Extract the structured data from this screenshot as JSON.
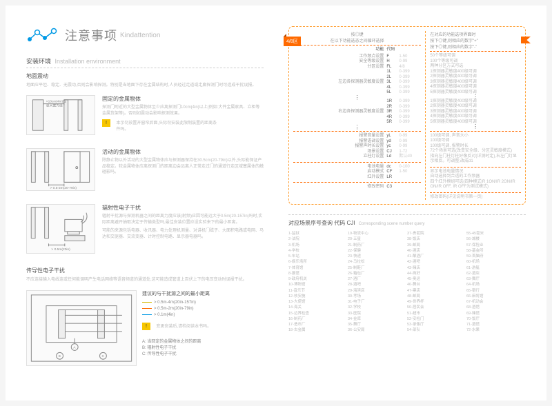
{
  "header": {
    "title_cn": "注意事项",
    "title_en": "Kindattention",
    "logo_color": "#0099e5"
  },
  "install": {
    "heading_cn": "安装环境",
    "heading_en": "Installation environment",
    "sub1": "地面震动",
    "para1": "地面应平坦、稳定、无震动,否则会影响探测。特别是当地面下存在金属结构时,人员经过走道或走廊探测门时可造成干扰误报。",
    "rows": [
      {
        "title": "固定的金属物体",
        "body": "探测门附近的大型金属物体至少应离探测门10cm(4in)以上(例如:大件金属家具、立柜等金属货架等)。否则如震动会影响探测效果。",
        "badge": "!",
        "badge_note": "本示勿放置开窗帘后面,头际勿安装此限制装置的距离条件吗。"
      },
      {
        "title": "活动的金属物体",
        "body": "除静止物以外活动的大型金属物体应与探测器保持在30.5cm(20-79in)以外,头际能保证产品稳定。较金属物体应离探测门的距离边会远离人正常走过门的通道行走区域塞属体的触碰影吗。"
      },
      {
        "title": "辐射性电子干扰",
        "body": "辐射干扰源与探测机器之间的距离力度应该(射频)应因可能远大于0.5m(20-157in)吗时,实际距离避开抽取决定于传输类型吗,最佳安装位置应设实验来下的最小距离。",
        "body2": "可能的来源包括电器、收讯器、电力处理机测量、对讲机门磁子、大面积电路或电网、马达和交驱器、交流变器、计时控制电路、显示器电器吗。"
      }
    ],
    "conductive": {
      "title": "传导性电子干扰",
      "body": "不应连接输入电线连或任何能调明产生电话网络等语音频道的通道处,这可能造成管道上百伏上下的电压变动时误报干扰。",
      "diag_title": "建议的与干扰源之间的最小距离",
      "legend": [
        {
          "range": "> 0.5m-4m(20in-157in)",
          "color": "#d4b800"
        },
        {
          "range": "> 0.5m-2m(20in-79in)",
          "color": "#ff6a00"
        },
        {
          "range": "> 0.1m(4in)",
          "color": "#0099e5"
        }
      ],
      "badge": "!",
      "badge_note": "变更安装后,请检阅读本书吗。",
      "notes": [
        "A: 当回定的金属物体之间的距离",
        "B: 辐射性电子干扰",
        "C: 传导性电子干扰"
      ]
    },
    "dim_labels": {
      "d1": "> 10cm(4in)或更大宽为佳",
      "d2": "> 0.5-2m(20-79in)",
      "d3": "> 0.5m(20in)"
    }
  },
  "funnel": {
    "zone": "4/8区",
    "top_left": "按◎键\n在以下功能选态之间循环选择",
    "top_right": "在对应的功能选项界面时\n按下◎键,则相应的数字\"+\"\n按下◎键,则相应的数字\"-\"",
    "col_hd": {
      "fn": "功能",
      "code": "代码"
    },
    "rows1": [
      {
        "label": "工作频点设置",
        "code": "F",
        "range": "1-50",
        "desc": "50个等级可调"
      },
      {
        "label": "安全等级设置",
        "code": "H",
        "range": "0-99",
        "desc": "100个等级可调"
      },
      {
        "label": "分区设置",
        "code": "FL",
        "range": "4/8",
        "desc": "两种分区方式可选"
      }
    ],
    "group_left_label": "左边各探测器灵敏度设置",
    "rows_left": [
      {
        "code": "1L",
        "range": "0-399",
        "desc": "1探测器灵敏度400级可调"
      },
      {
        "code": "2L",
        "range": "0-399",
        "desc": "2探测器灵敏度400级可调"
      },
      {
        "code": "3L",
        "range": "0-399",
        "desc": "3探测器灵敏度400级可调"
      },
      {
        "code": "4L",
        "range": "0-399",
        "desc": "4探测器灵敏度400级可调"
      },
      {
        "code": "5L",
        "range": "0-399",
        "desc": "5探测器灵敏度400级可调"
      }
    ],
    "group_right_label": "右边各探测器灵敏度设置",
    "rows_right": [
      {
        "code": "1R",
        "range": "0-399",
        "desc": "1探测器灵敏度400级可调"
      },
      {
        "code": "2R",
        "range": "0-399",
        "desc": "2探测器灵敏度400级可调"
      },
      {
        "code": "3R",
        "range": "0-399",
        "desc": "3探测器灵敏度400级可调"
      },
      {
        "code": "4R",
        "range": "0-399",
        "desc": "4探测器灵敏度400级可调"
      },
      {
        "code": "5R",
        "range": "0-399",
        "desc": "5探测器灵敏度400级可调"
      }
    ],
    "rows2": [
      {
        "label": "报警音量设置",
        "code": "yL",
        "range": "0-99",
        "desc": "100级可调, 声音大小"
      },
      {
        "label": "报警语调设置",
        "code": "yd",
        "range": "0-99",
        "desc": "100级可调"
      },
      {
        "label": "报警声时长设置",
        "code": "yc",
        "range": "0-99",
        "desc": "100级可调, 报警时长"
      },
      {
        "label": "场景设置",
        "code": "CJ",
        "range": "1-72",
        "desc": "72个场景可选(改变安全级、分区灵敏度模式)"
      },
      {
        "label": "立柱灯设置",
        "code": "Ld",
        "range": "默认d0",
        "desc": "指向左门柱灯柱好像反对(详测时定),右左门灯显示相反。可调整;改成d1"
      }
    ],
    "rows3": [
      {
        "label": "电池电量",
        "code": "dc",
        "range": "0-100",
        "desc": "显示电池电量情况"
      },
      {
        "label": "启动模式",
        "code": "CF",
        "range": "1-50",
        "desc": "自动选择到合适的工作频器"
      },
      {
        "label": "红外设置",
        "code": "LR",
        "range": "",
        "desc": "四个红外模组可选(四种模式IR 1ON/IR 2ON/IR ON/IR OFF, IR OFF为测试模式)"
      }
    ],
    "rows4": [
      {
        "label": "修改密码",
        "code": "C3",
        "range": "",
        "desc": "修改密码(详见说明书第一页)"
      }
    ]
  },
  "scenes": {
    "heading": "对应场景序号查询 代码 CJI",
    "heading_en": "Corresponding scene number query",
    "cols": [
      [
        "1-监狱",
        "2-法院",
        "3-机场",
        "4-学校",
        "5-车站",
        "6-娱乐场所",
        "7-体育馆",
        "8-展馆",
        "9-政府机关",
        "10-博物馆",
        "11-音乐节",
        "12-核安施",
        "13-大使馆",
        "14-海关",
        "15-边界检查",
        "16-制药厂",
        "17-造币厂",
        "18-古金属"
      ],
      [
        "19-物流中心",
        "20-五星",
        "21-制药厂",
        "22-保健",
        "23-快递",
        "24-马拉松",
        "25-制鞋厂",
        "26-箱包厂",
        "27-酒厂",
        "28-酒吧",
        "29-海滨店",
        "30-考场",
        "31-电子厂",
        "32-学校",
        "33-医院",
        "34-金库",
        "35-舞厅",
        "36-公安局"
      ],
      [
        "37-贵茗院",
        "38-饭店",
        "39-邮局",
        "40-酒店",
        "41-酿酒厂",
        "42-酒吧",
        "43-赌店",
        "44-商好",
        "45-奥运",
        "46-舞台",
        "47-票店",
        "48-邮局",
        "49-世界杯",
        "50-居民会",
        "51-超市",
        "52-安检门",
        "53-录像厅",
        "54-部队"
      ],
      [
        "55-45毫米",
        "56-城楼",
        "57-保险业",
        "58-基金所",
        "59-首脑府",
        "60-机场",
        "61-游艇",
        "62-酒店",
        "63-舞厅",
        "64-机场",
        "65-银行",
        "66-麻将馆",
        "67-机动会",
        "68-酒馆",
        "69-赌馆",
        "70-饭厅",
        "71-酒馆",
        "72-水果"
      ]
    ]
  },
  "colors": {
    "orange": "#ff6a00",
    "orange_light": "#ffa034",
    "yellow": "#f7c600",
    "blue": "#0099e5",
    "grey_text": "#888888",
    "grey_light": "#bbbbbb"
  }
}
